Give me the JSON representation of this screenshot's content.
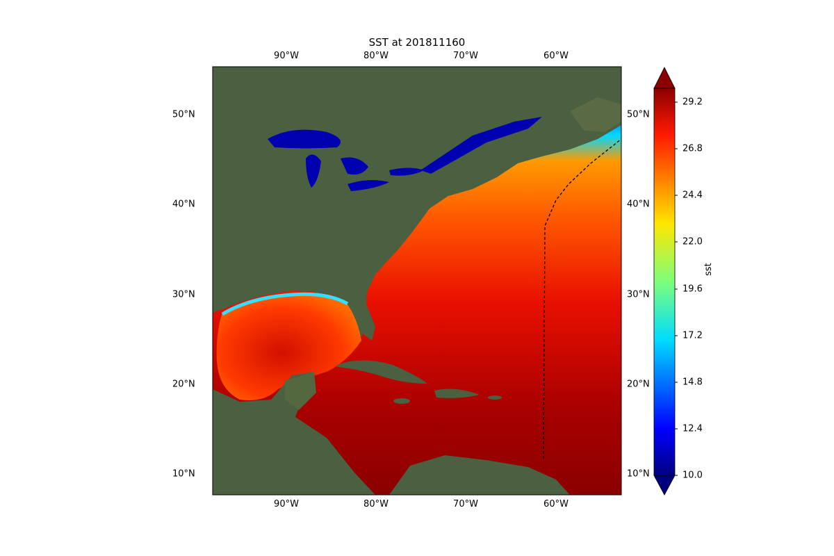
{
  "title": "SST at 201811160",
  "map": {
    "lon_labels": [
      "90°W",
      "80°W",
      "70°W",
      "60°W"
    ],
    "lat_labels": [
      "50°N",
      "40°N",
      "30°N",
      "20°N",
      "10°N"
    ]
  },
  "colorbar": {
    "label": "sst",
    "ticks": [
      "29.2",
      "26.8",
      "24.4",
      "22.0",
      "19.6",
      "17.2",
      "14.8",
      "12.4",
      "10.0"
    ],
    "colormap": "jet",
    "extend": "both"
  },
  "colors": {
    "land": "#4a6040",
    "warm_sea": "#8b0000",
    "cold_sea": "#0000c0"
  }
}
